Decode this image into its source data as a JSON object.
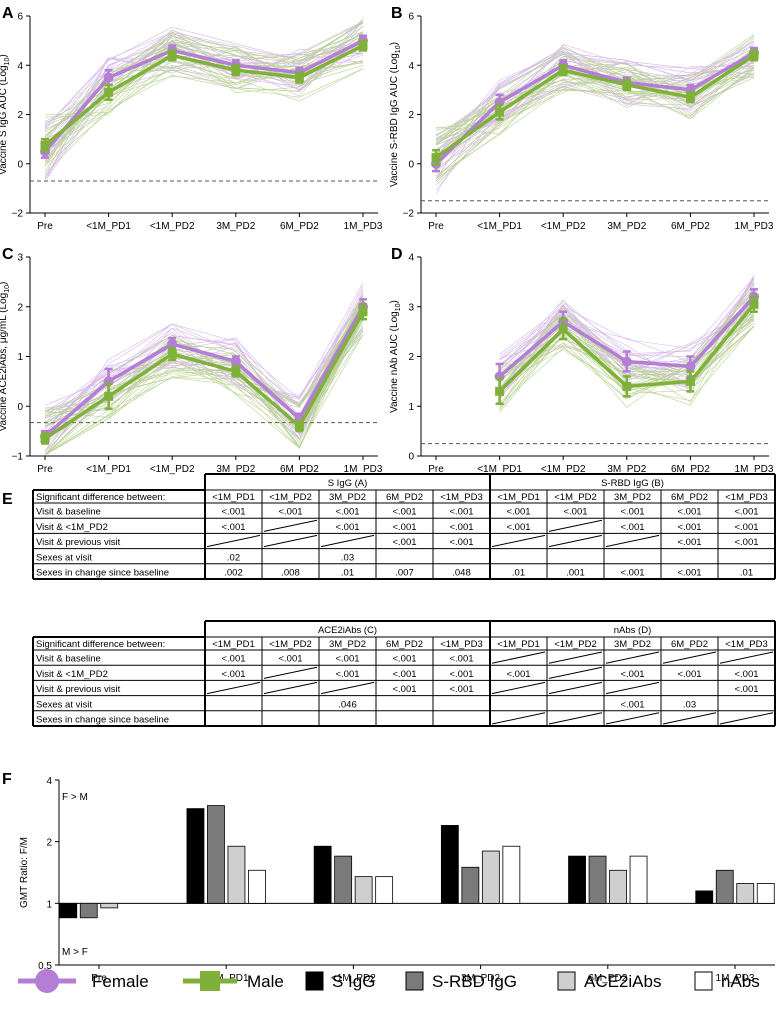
{
  "colors": {
    "female": "#b57ed6",
    "female_line": "#b57ed6",
    "male": "#7fb13a",
    "male_line": "#7fb13a",
    "s_igg": "#000000",
    "s_rbd_igg": "#7a7a7a",
    "ace2iabs": "#cfcfcf",
    "nabs": "#ffffff"
  },
  "chart_data": [
    {
      "id": "A",
      "type": "line",
      "letter": "A",
      "ylabel": "Vaccine S IgG AUC (Log10)",
      "categories": [
        "Pre",
        "<1M_PD1",
        "<1M_PD2",
        "3M_PD2",
        "6M_PD2",
        "1M_PD3"
      ],
      "ylim": [
        -2,
        6
      ],
      "yticks": [
        -2,
        0,
        2,
        4,
        6
      ],
      "threshold": -0.7,
      "series": [
        {
          "name": "Female",
          "values": [
            0.5,
            3.5,
            4.6,
            4.0,
            3.7,
            5.0
          ],
          "err": [
            0.25,
            0.3,
            0.2,
            0.2,
            0.2,
            0.2
          ]
        },
        {
          "name": "Male",
          "values": [
            0.75,
            2.9,
            4.4,
            3.8,
            3.5,
            4.8
          ],
          "err": [
            0.25,
            0.3,
            0.2,
            0.2,
            0.2,
            0.2
          ]
        }
      ]
    },
    {
      "id": "B",
      "type": "line",
      "letter": "B",
      "ylabel": "Vaccine S-RBD IgG AUC (Log10)",
      "categories": [
        "Pre",
        "<1M_PD1",
        "<1M_PD2",
        "3M_PD2",
        "6M_PD2",
        "1M_PD3"
      ],
      "ylim": [
        -2,
        6
      ],
      "yticks": [
        -2,
        0,
        2,
        4,
        6
      ],
      "threshold": -1.5,
      "series": [
        {
          "name": "Female",
          "values": [
            0.0,
            2.5,
            4.0,
            3.3,
            3.0,
            4.5
          ],
          "err": [
            0.3,
            0.3,
            0.2,
            0.2,
            0.2,
            0.2
          ]
        },
        {
          "name": "Male",
          "values": [
            0.25,
            2.1,
            3.8,
            3.2,
            2.7,
            4.4
          ],
          "err": [
            0.3,
            0.3,
            0.2,
            0.2,
            0.2,
            0.2
          ]
        }
      ]
    },
    {
      "id": "C",
      "type": "line",
      "letter": "C",
      "ylabel": "Vaccine ACE2iAbs, μg/mL (Log10)",
      "categories": [
        "Pre",
        "<1M_PD1",
        "<1M_PD2",
        "3M_PD2",
        "6M_PD2",
        "1M_PD3"
      ],
      "ylim": [
        -1,
        3
      ],
      "yticks": [
        -1,
        0,
        1,
        2,
        3
      ],
      "threshold": -0.33,
      "series": [
        {
          "name": "Female",
          "values": [
            -0.6,
            0.5,
            1.25,
            0.9,
            -0.25,
            2.0
          ],
          "err": [
            0.1,
            0.25,
            0.12,
            0.1,
            0.1,
            0.15
          ]
        },
        {
          "name": "Male",
          "values": [
            -0.65,
            0.2,
            1.05,
            0.7,
            -0.4,
            1.9
          ],
          "err": [
            0.1,
            0.25,
            0.12,
            0.1,
            0.1,
            0.15
          ]
        }
      ]
    },
    {
      "id": "D",
      "type": "line",
      "letter": "D",
      "ylabel": "Vaccine nAb AUC (Log10)",
      "categories": [
        "Pre",
        "<1M_PD1",
        "<1M_PD2",
        "3M_PD2",
        "6M_PD2",
        "1M_PD3"
      ],
      "ylim": [
        0,
        4
      ],
      "yticks": [
        0,
        1,
        2,
        3,
        4
      ],
      "threshold": 0.25,
      "series": [
        {
          "name": "Female",
          "values": [
            null,
            1.6,
            2.7,
            1.9,
            1.8,
            3.2
          ],
          "err": [
            0,
            0.25,
            0.2,
            0.2,
            0.2,
            0.15
          ]
        },
        {
          "name": "Male",
          "values": [
            null,
            1.3,
            2.55,
            1.4,
            1.5,
            3.05
          ],
          "err": [
            0,
            0.25,
            0.2,
            0.2,
            0.2,
            0.15
          ]
        }
      ]
    },
    {
      "id": "F",
      "type": "bar",
      "letter": "F",
      "ylabel": "GMT Ratio: F/M",
      "scale": "log",
      "ylim": [
        0.5,
        4
      ],
      "yticks": [
        0.5,
        1,
        2,
        4
      ],
      "ytick_labels": [
        "0.5",
        "1",
        "2",
        "4"
      ],
      "annotation_top": "F > M",
      "annotation_bottom": "M > F",
      "categories": [
        "Pre",
        "<1M_PD1",
        "<1M_PD2",
        "3M_PD2",
        "6M_PD2",
        "1M_PD3"
      ],
      "series": [
        {
          "name": "S IgG",
          "values": [
            0.85,
            2.9,
            1.9,
            2.4,
            1.7,
            1.15
          ]
        },
        {
          "name": "S-RBD IgG",
          "values": [
            0.85,
            3.0,
            1.7,
            1.5,
            1.7,
            1.45
          ]
        },
        {
          "name": "ACE2iAbs",
          "values": [
            0.95,
            1.9,
            1.35,
            1.8,
            1.45,
            1.25
          ]
        },
        {
          "name": "nAbs",
          "values": [
            1.0,
            1.45,
            1.35,
            1.9,
            1.7,
            1.25
          ]
        }
      ]
    }
  ],
  "panel_e": {
    "letter": "E",
    "row_header": "Significant difference between:",
    "row_labels": [
      "Visit & baseline",
      "Visit & <1M_PD2",
      "Visit & previous visit",
      "Sexes at visit",
      "Sexes in change since baseline"
    ],
    "columns": [
      "<1M_PD1",
      "<1M_PD2",
      "3M_PD2",
      "6M_PD2",
      "<1M_PD3"
    ],
    "tables": [
      {
        "groups": [
          {
            "title": "S IgG (A)",
            "rows": [
              [
                "<.001",
                "<.001",
                "<.001",
                "<.001",
                "<.001"
              ],
              [
                "<.001",
                "/",
                "<.001",
                "<.001",
                "<.001"
              ],
              [
                "/",
                "/",
                "/",
                "<.001",
                "<.001"
              ],
              [
                ".02",
                "",
                ".03",
                "",
                ""
              ],
              [
                ".002",
                ".008",
                ".01",
                ".007",
                ".048"
              ]
            ]
          },
          {
            "title": "S-RBD IgG (B)",
            "rows": [
              [
                "<.001",
                "<.001",
                "<.001",
                "<.001",
                "<.001"
              ],
              [
                "<.001",
                "/",
                "<.001",
                "<.001",
                "<.001"
              ],
              [
                "/",
                "/",
                "/",
                "<.001",
                "<.001"
              ],
              [
                "",
                "",
                "",
                "",
                ""
              ],
              [
                ".01",
                ".001",
                "<.001",
                "<.001",
                ".01"
              ]
            ]
          }
        ]
      },
      {
        "groups": [
          {
            "title": "ACE2iAbs (C)",
            "rows": [
              [
                "<.001",
                "<.001",
                "<.001",
                "<.001",
                "<.001"
              ],
              [
                "<.001",
                "/",
                "<.001",
                "<.001",
                "<.001"
              ],
              [
                "/",
                "/",
                "/",
                "<.001",
                "<.001"
              ],
              [
                "",
                "",
                ".046",
                "",
                ""
              ],
              [
                "",
                "",
                "",
                "",
                ""
              ]
            ]
          },
          {
            "title": "nAbs (D)",
            "rows": [
              [
                "/",
                "/",
                "/",
                "/",
                "/"
              ],
              [
                "<.001",
                "/",
                "<.001",
                "<.001",
                "<.001"
              ],
              [
                "/",
                "/",
                "/",
                "",
                "<.001"
              ],
              [
                "",
                "",
                "<.001",
                ".03",
                ""
              ],
              [
                "/",
                "/",
                "/",
                "/",
                "/"
              ]
            ]
          }
        ]
      }
    ]
  },
  "legend": {
    "items": [
      {
        "label": "Female",
        "kind": "line-circle",
        "color": "#b57ed6"
      },
      {
        "label": "Male",
        "kind": "line-square",
        "color": "#7fb13a"
      },
      {
        "label": "S IgG",
        "kind": "box",
        "color": "#000000"
      },
      {
        "label": "S-RBD IgG",
        "kind": "box",
        "color": "#7a7a7a"
      },
      {
        "label": "ACE2iAbs",
        "kind": "box",
        "color": "#cfcfcf"
      },
      {
        "label": "nAbs",
        "kind": "box",
        "color": "#ffffff"
      }
    ]
  }
}
